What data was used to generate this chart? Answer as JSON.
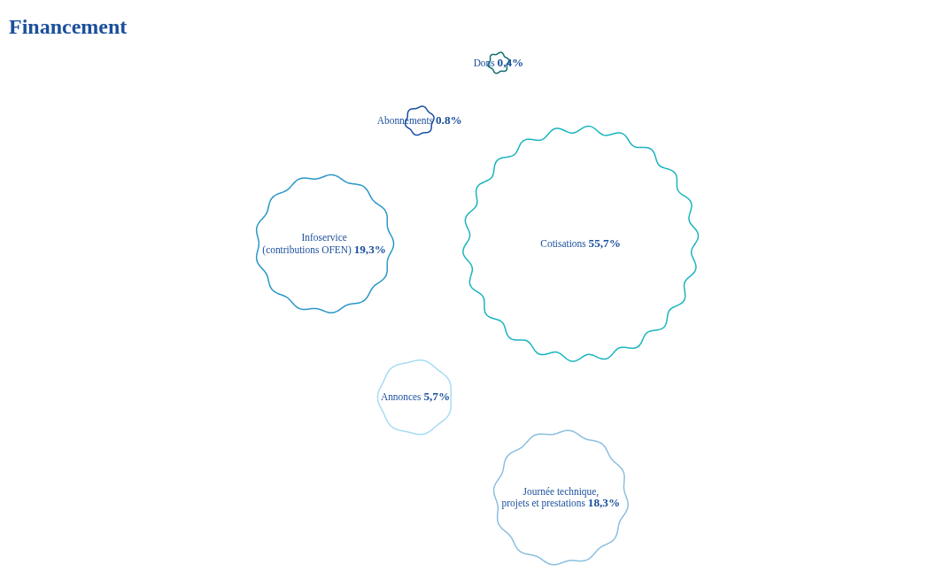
{
  "chart_data": {
    "type": "other",
    "title": "Financement",
    "categories": [
      "Infoservice\n(contributions OFEN)",
      "Cotisations",
      "Annonces",
      "Abonnements",
      "Journée technique,\nprojets et prestations",
      "Dons"
    ],
    "values": [
      19.3,
      55.7,
      5.7,
      0.8,
      18.3,
      0.4
    ],
    "value_labels": [
      "19,3%",
      "55,7%",
      "5,7%",
      "0.8%",
      "18,3%",
      "0,4%"
    ],
    "colors": [
      "#2a97c9",
      "#1ab5bf",
      "#a8dcf3",
      "#1a4fa0",
      "#8bbfdf",
      "#0e6e6e"
    ]
  }
}
